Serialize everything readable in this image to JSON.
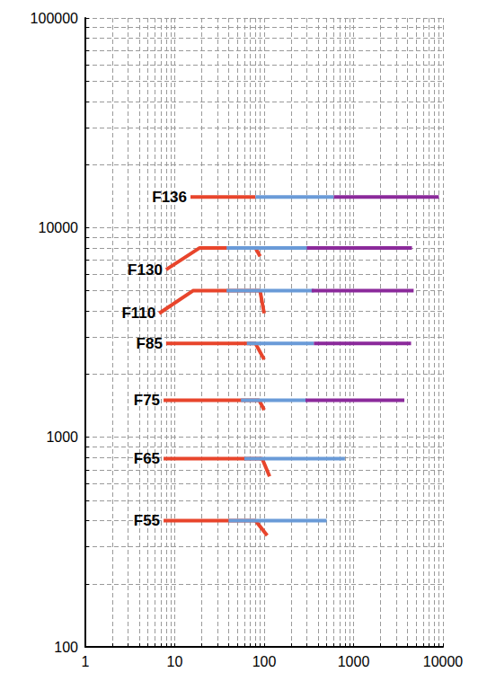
{
  "chart_data": {
    "type": "line",
    "log": true,
    "grid": true,
    "xlim": [
      1,
      10000
    ],
    "ylim": [
      100,
      100000
    ],
    "xticks": [
      1,
      10,
      100,
      1000,
      10000
    ],
    "yticks": [
      100,
      1000,
      10000,
      100000
    ],
    "series": [
      {
        "name": "F136",
        "segments": [
          {
            "color": "#e8452c",
            "x": [
              15,
              80
            ],
            "values": [
              14000,
              14000
            ]
          },
          {
            "color": "#6a9bd8",
            "x": [
              80,
              600
            ],
            "values": [
              14000,
              14000
            ]
          },
          {
            "color": "#8b2a9b",
            "x": [
              600,
              9000
            ],
            "values": [
              14000,
              14000
            ]
          }
        ]
      },
      {
        "name": "F130",
        "segments": [
          {
            "color": "#e8452c",
            "x": [
              8,
              19,
              80,
              90
            ],
            "values": [
              6300,
              8000,
              8000,
              7300
            ]
          },
          {
            "color": "#6a9bd8",
            "x": [
              38,
              400
            ],
            "values": [
              8000,
              8000
            ]
          },
          {
            "color": "#8b2a9b",
            "x": [
              300,
              4500
            ],
            "values": [
              8000,
              8000
            ]
          }
        ]
      },
      {
        "name": "F110",
        "segments": [
          {
            "color": "#e8452c",
            "x": [
              6.7,
              16,
              90,
              100
            ],
            "values": [
              3900,
              5000,
              5000,
              3900
            ]
          },
          {
            "color": "#6a9bd8",
            "x": [
              38,
              360
            ],
            "values": [
              5000,
              5000
            ]
          },
          {
            "color": "#8b2a9b",
            "x": [
              340,
              4700
            ],
            "values": [
              5000,
              5000
            ]
          }
        ]
      },
      {
        "name": "F85",
        "segments": [
          {
            "color": "#e8452c",
            "x": [
              8,
              80,
              100
            ],
            "values": [
              2800,
              2800,
              2350
            ]
          },
          {
            "color": "#6a9bd8",
            "x": [
              64,
              360
            ],
            "values": [
              2800,
              2800
            ]
          },
          {
            "color": "#8b2a9b",
            "x": [
              360,
              4400
            ],
            "values": [
              2800,
              2800
            ]
          }
        ]
      },
      {
        "name": "F75",
        "segments": [
          {
            "color": "#e8452c",
            "x": [
              7.5,
              88,
              100
            ],
            "values": [
              1500,
              1500,
              1350
            ]
          },
          {
            "color": "#6a9bd8",
            "x": [
              55,
              300
            ],
            "values": [
              1500,
              1500
            ]
          },
          {
            "color": "#8b2a9b",
            "x": [
              290,
              3700
            ],
            "values": [
              1500,
              1500
            ]
          }
        ]
      },
      {
        "name": "F65",
        "segments": [
          {
            "color": "#e8452c",
            "x": [
              7.5,
              95,
              115
            ],
            "values": [
              790,
              790,
              650
            ]
          },
          {
            "color": "#6a9bd8",
            "x": [
              60,
              800
            ],
            "values": [
              790,
              790
            ]
          }
        ]
      },
      {
        "name": "F55",
        "segments": [
          {
            "color": "#e8452c",
            "x": [
              7.5,
              80,
              108
            ],
            "values": [
              400,
              400,
              340
            ]
          },
          {
            "color": "#6a9bd8",
            "x": [
              40,
              500
            ],
            "values": [
              400,
              400
            ]
          }
        ]
      }
    ]
  }
}
